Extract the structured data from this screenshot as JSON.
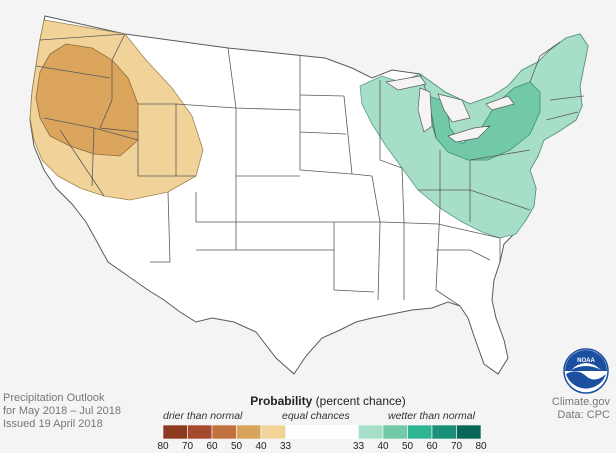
{
  "map": {
    "colors": {
      "background": "#f4f4f4",
      "land": "#ffffff",
      "border": "#5a5a5a",
      "dry_33": "#f1d39a",
      "dry_40": "#dba55e",
      "wet_33": "#a6dec8",
      "wet_40": "#72c9a8"
    }
  },
  "footer": {
    "left_line1": "Precipitation Outlook",
    "left_line2": "for May 2018 – Jul 2018",
    "left_line3": "Issued 19 April 2018",
    "right_line1": "Climate.gov",
    "right_line2": "Data: CPC"
  },
  "legend": {
    "title_bold": "Probability",
    "title_rest": " (percent chance)",
    "drier": "drier than normal",
    "equal": "equal chances",
    "wetter": "wetter than normal",
    "ticks": [
      "80",
      "70",
      "60",
      "50",
      "40",
      "33",
      "33",
      "40",
      "50",
      "60",
      "70",
      "80"
    ],
    "dry_colors": [
      "#8b3a1f",
      "#a54a2c",
      "#c3703f",
      "#daa35c",
      "#f1d39a"
    ],
    "wet_colors": [
      "#a6dec8",
      "#72c9a8",
      "#2fb592",
      "#19907a",
      "#0a6655"
    ]
  },
  "logo": {
    "text": "NOAA",
    "icon": "noaa-logo-icon"
  }
}
